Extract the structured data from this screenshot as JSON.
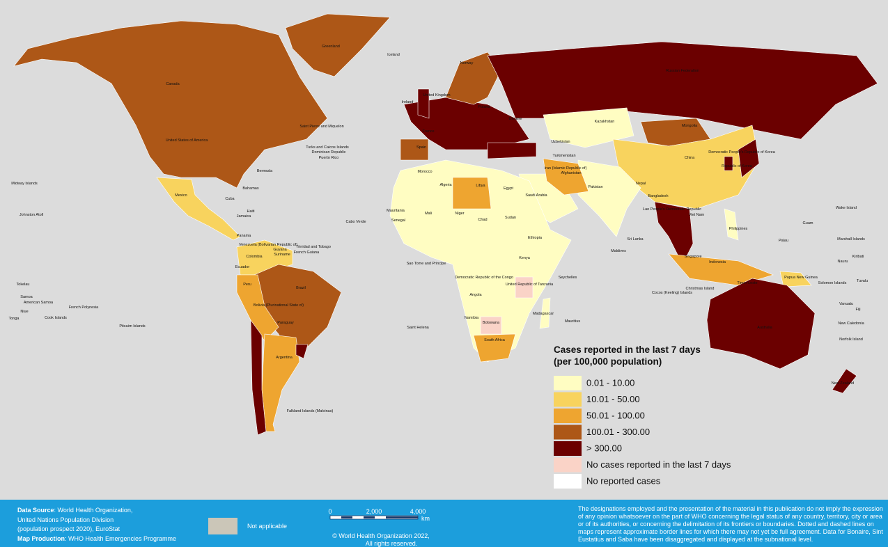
{
  "map": {
    "labels": [
      "Greenland",
      "Iceland",
      "Canada",
      "United States of America",
      "Mexico",
      "Cuba",
      "Bermuda",
      "Bahamas",
      "Midway Islands",
      "Johnston Atoll",
      "Brazil",
      "Colombia",
      "Venezuela (Bolivarian Republic of)",
      "Peru",
      "Argentina",
      "Bolivia (Plurinational State of)",
      "Paraguay",
      "Ecuador",
      "Falkland Islands (Malvinas)",
      "Russian Federation",
      "Kazakhstan",
      "Mongolia",
      "China",
      "Pakistan",
      "Afghanistan",
      "Nepal",
      "Bangladesh",
      "Iran (Islamic Republic of)",
      "Saudi Arabia",
      "Egypt",
      "Libya",
      "Algeria",
      "Mali",
      "Niger",
      "Chad",
      "Sudan",
      "Ethiopia",
      "Kenya",
      "Democratic Republic of the Congo",
      "Angola",
      "Namibia",
      "Botswana",
      "South Africa",
      "Madagascar",
      "United Republic of Tanzania",
      "Australia",
      "New Zealand",
      "Indonesia",
      "Philippines",
      "Republic of Korea",
      "Democratic People's Republic of Korea",
      "Viet Nam",
      "Lao People's Democratic Republic",
      "Sri Lanka",
      "Maldives",
      "Papua New Guinea",
      "Turkmenistan",
      "Uzbekistan",
      "Ukraine",
      "Poland",
      "Norway",
      "Ireland",
      "United Kingdom",
      "France",
      "Spain",
      "Morocco",
      "Mauritania",
      "Senegal",
      "Cabo Verde",
      "Tokelau",
      "Samoa",
      "American Samoa",
      "Niue",
      "Tonga",
      "Cook Islands",
      "French Polynesia",
      "Pitcairn Islands",
      "Saint Helena",
      "Sao Tome and Principe",
      "Seychelles",
      "Mauritius",
      "Christmas Island",
      "Cocos (Keeling) Islands",
      "Wake Island",
      "Guam",
      "Marshall Islands",
      "Kiribati",
      "Nauru",
      "Solomon Islands",
      "Tuvalu",
      "Vanuatu",
      "Fiji",
      "New Caledonia",
      "Norfolk Island",
      "Palau",
      "Singapore",
      "Timor-Leste",
      "Saint Pierre and Miquelon",
      "Turks and Caicos Islands",
      "Dominican Republic",
      "Puerto Rico",
      "Jamaica",
      "Haiti",
      "Panama",
      "Guyana",
      "Suriname",
      "French Guiana",
      "Trinidad and Tobago"
    ],
    "legend": {
      "title_lines": [
        "Cases reported in the last 7 days",
        "(per 100,000 population)"
      ],
      "items": [
        {
          "label": "0.01 - 10.00",
          "color": "#fffdc2"
        },
        {
          "label": "10.01 - 50.00",
          "color": "#f8d35e"
        },
        {
          "label": "50.01 - 100.00",
          "color": "#eea530"
        },
        {
          "label": "100.01 - 300.00",
          "color": "#ad5717"
        },
        {
          "label": "> 300.00",
          "color": "#6b0000"
        },
        {
          "label": "No cases reported in the last 7 days",
          "color": "#fad3c7"
        },
        {
          "label": "No reported cases",
          "color": "#ffffff"
        }
      ]
    }
  },
  "footer": {
    "source_label": "Data Source",
    "source_lines": [
      ": World Health Organization,",
      "United Nations Population Division",
      "(population prospect 2020), EuroStat"
    ],
    "production_label": "Map Production",
    "production_text": ": WHO Health Emergencies Programme",
    "not_applicable": "Not applicable",
    "scale": [
      "0",
      "2,000",
      "4,000",
      "km"
    ],
    "copyright_lines": [
      "© World Health Organization  2022,",
      "All rights reserved."
    ],
    "disclaimer_lines": [
      "The designations employed and the presentation of the material in this publication do not imply the expression",
      "of any opinion whatsoever on the part of WHO concerning the legal status of any country, territory, city or area",
      "or of its authorities, or concerning the delimitation of its frontiers or boundaries. Dotted and dashed lines on",
      "maps represent approximate border lines for which there may not yet be full agreement. Data for Bonaire, Sint",
      "Eustatius and Saba have been disaggregated and displayed at the subnational level."
    ]
  }
}
